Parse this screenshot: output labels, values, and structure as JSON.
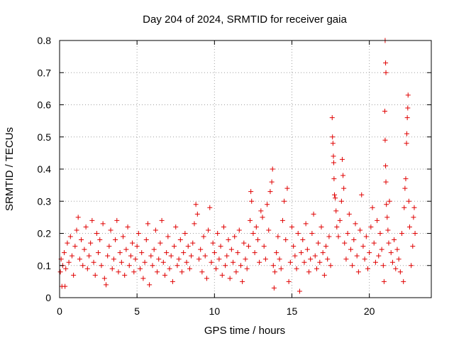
{
  "chart_data": {
    "type": "scatter",
    "title": "Day 204 of 2024, SRMTID for receiver gaia",
    "xlabel": "GPS time / hours",
    "ylabel": "SRMTID / TECUs",
    "xlim": [
      0,
      24
    ],
    "ylim": [
      0,
      0.8
    ],
    "xticks": [
      0,
      5,
      10,
      15,
      20
    ],
    "xtick_labels": [
      "0",
      "5",
      "10",
      "15",
      "20"
    ],
    "yticks": [
      0,
      0.1,
      0.2,
      0.3,
      0.4,
      0.5,
      0.6,
      0.7,
      0.8
    ],
    "ytick_labels": [
      "0",
      "0.1",
      "0.2",
      "0.3",
      "0.4",
      "0.5",
      "0.6",
      "0.7",
      "0.8"
    ],
    "grid": true,
    "marker": "+",
    "color": "#e00000",
    "series": [
      {
        "name": "SRMTID",
        "points": [
          [
            0.05,
            0.08
          ],
          [
            0.1,
            0.12
          ],
          [
            0.15,
            0.035
          ],
          [
            0.2,
            0.1
          ],
          [
            0.3,
            0.14
          ],
          [
            0.35,
            0.035
          ],
          [
            0.4,
            0.09
          ],
          [
            0.5,
            0.17
          ],
          [
            0.6,
            0.11
          ],
          [
            0.7,
            0.19
          ],
          [
            0.8,
            0.13
          ],
          [
            0.9,
            0.07
          ],
          [
            1.0,
            0.16
          ],
          [
            1.1,
            0.21
          ],
          [
            1.2,
            0.25
          ],
          [
            1.3,
            0.12
          ],
          [
            1.4,
            0.18
          ],
          [
            1.5,
            0.1
          ],
          [
            1.6,
            0.15
          ],
          [
            1.7,
            0.22
          ],
          [
            1.8,
            0.09
          ],
          [
            1.9,
            0.13
          ],
          [
            2.0,
            0.17
          ],
          [
            2.1,
            0.24
          ],
          [
            2.2,
            0.11
          ],
          [
            2.3,
            0.07
          ],
          [
            2.4,
            0.2
          ],
          [
            2.5,
            0.14
          ],
          [
            2.6,
            0.18
          ],
          [
            2.7,
            0.1
          ],
          [
            2.8,
            0.23
          ],
          [
            2.9,
            0.06
          ],
          [
            3.0,
            0.04
          ],
          [
            3.1,
            0.13
          ],
          [
            3.2,
            0.16
          ],
          [
            3.3,
            0.21
          ],
          [
            3.4,
            0.09
          ],
          [
            3.5,
            0.12
          ],
          [
            3.6,
            0.18
          ],
          [
            3.7,
            0.24
          ],
          [
            3.8,
            0.08
          ],
          [
            3.9,
            0.14
          ],
          [
            4.0,
            0.11
          ],
          [
            4.1,
            0.19
          ],
          [
            4.2,
            0.07
          ],
          [
            4.3,
            0.15
          ],
          [
            4.4,
            0.22
          ],
          [
            4.5,
            0.1
          ],
          [
            4.6,
            0.13
          ],
          [
            4.7,
            0.17
          ],
          [
            4.8,
            0.08
          ],
          [
            4.9,
            0.12
          ],
          [
            5.0,
            0.16
          ],
          [
            5.1,
            0.2
          ],
          [
            5.2,
            0.09
          ],
          [
            5.3,
            0.14
          ],
          [
            5.4,
            0.06
          ],
          [
            5.5,
            0.11
          ],
          [
            5.6,
            0.18
          ],
          [
            5.7,
            0.23
          ],
          [
            5.8,
            0.04
          ],
          [
            5.9,
            0.13
          ],
          [
            6.0,
            0.1
          ],
          [
            6.1,
            0.15
          ],
          [
            6.2,
            0.21
          ],
          [
            6.3,
            0.08
          ],
          [
            6.4,
            0.12
          ],
          [
            6.5,
            0.17
          ],
          [
            6.6,
            0.24
          ],
          [
            6.7,
            0.11
          ],
          [
            6.8,
            0.07
          ],
          [
            6.9,
            0.14
          ],
          [
            7.0,
            0.19
          ],
          [
            7.1,
            0.09
          ],
          [
            7.2,
            0.13
          ],
          [
            7.3,
            0.05
          ],
          [
            7.4,
            0.16
          ],
          [
            7.5,
            0.22
          ],
          [
            7.6,
            0.1
          ],
          [
            7.7,
            0.12
          ],
          [
            7.8,
            0.18
          ],
          [
            7.9,
            0.08
          ],
          [
            8.0,
            0.14
          ],
          [
            8.1,
            0.2
          ],
          [
            8.2,
            0.11
          ],
          [
            8.3,
            0.16
          ],
          [
            8.4,
            0.09
          ],
          [
            8.5,
            0.13
          ],
          [
            8.6,
            0.17
          ],
          [
            8.7,
            0.23
          ],
          [
            8.8,
            0.29
          ],
          [
            8.9,
            0.26
          ],
          [
            9.0,
            0.12
          ],
          [
            9.1,
            0.15
          ],
          [
            9.2,
            0.08
          ],
          [
            9.3,
            0.19
          ],
          [
            9.4,
            0.13
          ],
          [
            9.5,
            0.06
          ],
          [
            9.6,
            0.21
          ],
          [
            9.7,
            0.28
          ],
          [
            9.8,
            0.11
          ],
          [
            9.9,
            0.17
          ],
          [
            10.0,
            0.14
          ],
          [
            10.1,
            0.09
          ],
          [
            10.2,
            0.2
          ],
          [
            10.3,
            0.12
          ],
          [
            10.4,
            0.16
          ],
          [
            10.5,
            0.07
          ],
          [
            10.6,
            0.22
          ],
          [
            10.7,
            0.1
          ],
          [
            10.8,
            0.13
          ],
          [
            10.9,
            0.18
          ],
          [
            11.0,
            0.06
          ],
          [
            11.1,
            0.15
          ],
          [
            11.2,
            0.11
          ],
          [
            11.3,
            0.19
          ],
          [
            11.4,
            0.08
          ],
          [
            11.5,
            0.14
          ],
          [
            11.6,
            0.21
          ],
          [
            11.7,
            0.1
          ],
          [
            11.8,
            0.05
          ],
          [
            11.9,
            0.17
          ],
          [
            12.0,
            0.12
          ],
          [
            12.1,
            0.09
          ],
          [
            12.2,
            0.16
          ],
          [
            12.3,
            0.24
          ],
          [
            12.35,
            0.33
          ],
          [
            12.4,
            0.3
          ],
          [
            12.5,
            0.2
          ],
          [
            12.6,
            0.14
          ],
          [
            12.7,
            0.22
          ],
          [
            12.8,
            0.18
          ],
          [
            12.9,
            0.11
          ],
          [
            13.0,
            0.27
          ],
          [
            13.1,
            0.25
          ],
          [
            13.2,
            0.16
          ],
          [
            13.3,
            0.12
          ],
          [
            13.4,
            0.29
          ],
          [
            13.5,
            0.21
          ],
          [
            13.6,
            0.33
          ],
          [
            13.7,
            0.36
          ],
          [
            13.75,
            0.4
          ],
          [
            13.8,
            0.1
          ],
          [
            13.85,
            0.03
          ],
          [
            13.9,
            0.08
          ],
          [
            14.0,
            0.14
          ],
          [
            14.1,
            0.19
          ],
          [
            14.2,
            0.12
          ],
          [
            14.3,
            0.09
          ],
          [
            14.4,
            0.24
          ],
          [
            14.5,
            0.3
          ],
          [
            14.6,
            0.18
          ],
          [
            14.7,
            0.34
          ],
          [
            14.8,
            0.05
          ],
          [
            14.9,
            0.11
          ],
          [
            15.0,
            0.22
          ],
          [
            15.1,
            0.16
          ],
          [
            15.2,
            0.13
          ],
          [
            15.3,
            0.09
          ],
          [
            15.4,
            0.2
          ],
          [
            15.5,
            0.02
          ],
          [
            15.6,
            0.14
          ],
          [
            15.7,
            0.18
          ],
          [
            15.8,
            0.11
          ],
          [
            15.9,
            0.23
          ],
          [
            16.0,
            0.15
          ],
          [
            16.1,
            0.08
          ],
          [
            16.2,
            0.12
          ],
          [
            16.3,
            0.2
          ],
          [
            16.4,
            0.26
          ],
          [
            16.5,
            0.13
          ],
          [
            16.6,
            0.09
          ],
          [
            16.7,
            0.17
          ],
          [
            16.8,
            0.11
          ],
          [
            16.9,
            0.22
          ],
          [
            17.0,
            0.14
          ],
          [
            17.1,
            0.07
          ],
          [
            17.2,
            0.16
          ],
          [
            17.3,
            0.12
          ],
          [
            17.4,
            0.19
          ],
          [
            17.5,
            0.1
          ],
          [
            17.6,
            0.56
          ],
          [
            17.62,
            0.5
          ],
          [
            17.65,
            0.48
          ],
          [
            17.68,
            0.44
          ],
          [
            17.7,
            0.42
          ],
          [
            17.72,
            0.37
          ],
          [
            17.75,
            0.32
          ],
          [
            17.8,
            0.31
          ],
          [
            17.85,
            0.27
          ],
          [
            17.9,
            0.22
          ],
          [
            18.0,
            0.19
          ],
          [
            18.1,
            0.24
          ],
          [
            18.2,
            0.3
          ],
          [
            18.25,
            0.43
          ],
          [
            18.3,
            0.38
          ],
          [
            18.35,
            0.34
          ],
          [
            18.4,
            0.17
          ],
          [
            18.5,
            0.12
          ],
          [
            18.6,
            0.2
          ],
          [
            18.7,
            0.26
          ],
          [
            18.8,
            0.15
          ],
          [
            18.9,
            0.1
          ],
          [
            19.0,
            0.18
          ],
          [
            19.1,
            0.23
          ],
          [
            19.2,
            0.13
          ],
          [
            19.3,
            0.08
          ],
          [
            19.4,
            0.21
          ],
          [
            19.5,
            0.32
          ],
          [
            19.6,
            0.16
          ],
          [
            19.7,
            0.12
          ],
          [
            19.8,
            0.19
          ],
          [
            19.9,
            0.09
          ],
          [
            20.0,
            0.14
          ],
          [
            20.1,
            0.22
          ],
          [
            20.2,
            0.28
          ],
          [
            20.3,
            0.17
          ],
          [
            20.4,
            0.11
          ],
          [
            20.5,
            0.24
          ],
          [
            20.6,
            0.13
          ],
          [
            20.7,
            0.2
          ],
          [
            20.8,
            0.15
          ],
          [
            20.9,
            0.1
          ],
          [
            20.95,
            0.05
          ],
          [
            21.0,
            0.58
          ],
          [
            21.02,
            0.49
          ],
          [
            21.05,
            0.41
          ],
          [
            21.07,
            0.36
          ],
          [
            21.1,
            0.29
          ],
          [
            21.15,
            0.25
          ],
          [
            21.2,
            0.21
          ],
          [
            21.25,
            0.17
          ],
          [
            21.3,
            0.3
          ],
          [
            21.4,
            0.14
          ],
          [
            21.5,
            0.11
          ],
          [
            21.6,
            0.18
          ],
          [
            21.7,
            0.09
          ],
          [
            21.8,
            0.15
          ],
          [
            21.9,
            0.12
          ],
          [
            22.0,
            0.08
          ],
          [
            22.1,
            0.2
          ],
          [
            22.2,
            0.05
          ],
          [
            22.25,
            0.28
          ],
          [
            22.3,
            0.34
          ],
          [
            22.35,
            0.37
          ],
          [
            22.4,
            0.48
          ],
          [
            22.42,
            0.51
          ],
          [
            22.45,
            0.56
          ],
          [
            22.48,
            0.59
          ],
          [
            22.5,
            0.63
          ],
          [
            22.55,
            0.3
          ],
          [
            22.6,
            0.22
          ],
          [
            22.7,
            0.1
          ],
          [
            22.8,
            0.16
          ],
          [
            22.85,
            0.25
          ],
          [
            22.9,
            0.28
          ],
          [
            22.95,
            0.2
          ],
          [
            21.02,
            0.8
          ],
          [
            21.05,
            0.73
          ],
          [
            21.07,
            0.7
          ]
        ]
      }
    ]
  }
}
